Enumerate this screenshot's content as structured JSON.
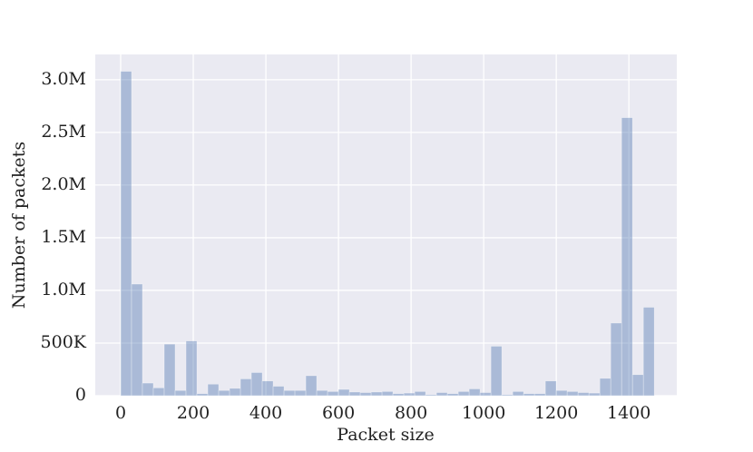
{
  "chart_data": {
    "type": "histogram",
    "xlabel": "Packet size",
    "ylabel": "Number of packets",
    "bins": [
      0,
      30,
      60,
      90,
      120,
      150,
      180,
      210,
      240,
      270,
      300,
      330,
      360,
      390,
      420,
      450,
      480,
      510,
      540,
      570,
      600,
      630,
      660,
      690,
      720,
      750,
      780,
      810,
      840,
      870,
      900,
      930,
      960,
      990,
      1020,
      1050,
      1080,
      1110,
      1140,
      1170,
      1200,
      1230,
      1260,
      1290,
      1320,
      1350,
      1380,
      1410,
      1440,
      1470
    ],
    "counts": [
      3080000,
      1060000,
      120000,
      75000,
      490000,
      50000,
      520000,
      20000,
      110000,
      50000,
      70000,
      160000,
      220000,
      140000,
      90000,
      50000,
      50000,
      190000,
      50000,
      40000,
      60000,
      35000,
      30000,
      35000,
      40000,
      20000,
      25000,
      40000,
      10000,
      30000,
      20000,
      40000,
      65000,
      30000,
      470000,
      10000,
      40000,
      20000,
      20000,
      140000,
      50000,
      40000,
      30000,
      25000,
      165000,
      690000,
      2640000,
      200000,
      840000
    ],
    "color": "#4c72b0",
    "opacity": 0.4,
    "xlim": [
      -70,
      1532
    ],
    "ylim": [
      0,
      3240000
    ],
    "xticks": [
      0,
      200,
      400,
      600,
      800,
      1000,
      1200,
      1400
    ],
    "yticks": [
      0,
      {
        "value": 500000,
        "label": "500K"
      },
      {
        "value": 1000000,
        "label": "1.0M"
      },
      {
        "value": 1500000,
        "label": "1.5M"
      },
      {
        "value": 2000000,
        "label": "2.0M"
      },
      {
        "value": 2500000,
        "label": "2.5M"
      },
      {
        "value": 3000000,
        "label": "3.0M"
      }
    ],
    "grid": true
  }
}
